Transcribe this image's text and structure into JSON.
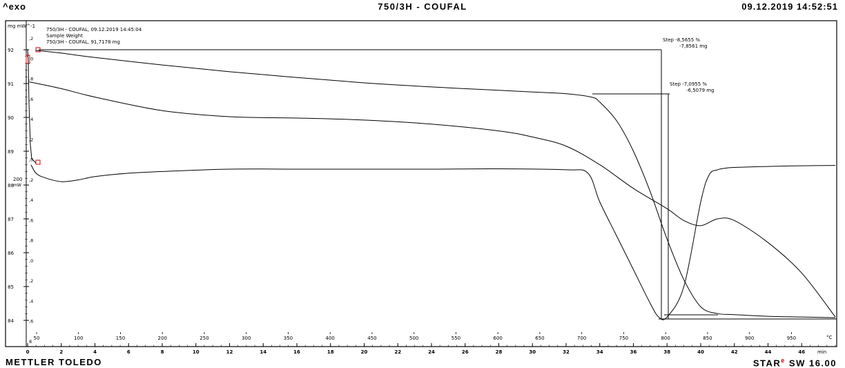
{
  "header": {
    "left": "^exo",
    "center": "750/3H - COUFAL",
    "right": "09.12.2019 14:52:51"
  },
  "footer": {
    "left": "METTLER TOLEDO",
    "right_brand": "STAR",
    "right_mark": "e",
    "right_version": "SW 16.00"
  },
  "chart_data": {
    "type": "line",
    "info_lines": [
      "750/3H - COUFAL, 09.12.2019 14:45:04",
      "Sample Weight",
      "750/3H - COUFAL, 91,7178 mg"
    ],
    "left_axis_units": "mg mW^-1",
    "y_tick_labels": [
      "92",
      "91",
      "90",
      "89",
      "88",
      "87",
      "86",
      "85",
      "84"
    ],
    "y_tick_values": [
      92,
      91,
      90,
      89,
      88,
      87,
      86,
      85,
      84
    ],
    "dtg_tick_labels": [
      ",2",
      ",0",
      ",8",
      ",6",
      ",4",
      ",2",
      ",0",
      ",2",
      ",4",
      ",6",
      ",8",
      ",0",
      ",2",
      ",4",
      ",6",
      "8"
    ],
    "dsc_axis_label": "200",
    "dsc_axis_unit": "mW",
    "x_time": {
      "unit": "min",
      "range": [
        0,
        48
      ],
      "ticks": [
        0,
        2,
        4,
        6,
        8,
        10,
        12,
        14,
        16,
        18,
        20,
        22,
        24,
        26,
        28,
        30,
        32,
        34,
        36,
        38,
        40,
        42,
        44,
        46
      ]
    },
    "x_temperature": {
      "unit": "°C",
      "ticks": [
        50,
        100,
        150,
        200,
        250,
        300,
        350,
        400,
        450,
        500,
        550,
        600,
        650,
        700,
        750,
        800,
        850,
        900,
        950
      ]
    },
    "steps": [
      {
        "label": "Step",
        "percent": "-8,5655 %",
        "mass": "-7,8561 mg"
      },
      {
        "label": "Step",
        "percent": "-7,0955 %",
        "mass": "-6,5079 mg"
      }
    ],
    "series": [
      {
        "role": "tga_upper",
        "x": [
          0.5,
          2,
          4,
          8,
          12,
          16,
          20,
          24,
          28,
          30,
          32,
          33.5,
          34,
          35,
          36,
          37,
          38,
          39,
          40,
          41,
          42,
          44,
          46,
          48
        ],
        "y": [
          91.98,
          91.9,
          91.77,
          91.55,
          91.35,
          91.18,
          91.02,
          90.9,
          90.8,
          90.75,
          90.7,
          90.6,
          90.45,
          89.9,
          89.0,
          87.8,
          86.4,
          85.2,
          84.4,
          84.2,
          84.17,
          84.12,
          84.1,
          84.08
        ]
      },
      {
        "role": "tga_lower",
        "x": [
          0.1,
          2,
          4,
          8,
          12,
          16,
          20,
          24,
          28,
          30,
          32,
          34,
          36,
          38,
          39,
          40,
          41,
          42,
          44,
          46,
          48
        ],
        "y": [
          91.05,
          90.85,
          90.6,
          90.2,
          90.02,
          89.98,
          89.92,
          89.8,
          89.6,
          89.42,
          89.15,
          88.6,
          87.9,
          87.3,
          86.95,
          86.8,
          87.0,
          86.95,
          86.3,
          85.4,
          84.1
        ]
      },
      {
        "role": "dsc",
        "x": [
          0.2,
          0.5,
          1,
          2,
          3,
          4,
          6,
          8,
          12,
          16,
          20,
          24,
          28,
          32,
          33.3,
          34,
          35,
          36,
          37,
          37.5,
          38,
          39,
          40,
          40.5,
          41,
          41.5,
          42,
          44,
          46,
          48
        ],
        "y": [
          88.6,
          88.35,
          88.22,
          88.1,
          88.15,
          88.25,
          88.35,
          88.4,
          88.47,
          88.47,
          88.47,
          88.47,
          88.48,
          88.45,
          88.35,
          87.5,
          86.5,
          85.5,
          84.5,
          84.1,
          84.1,
          85.0,
          87.5,
          88.3,
          88.45,
          88.5,
          88.52,
          88.55,
          88.57,
          88.58
        ]
      }
    ]
  }
}
